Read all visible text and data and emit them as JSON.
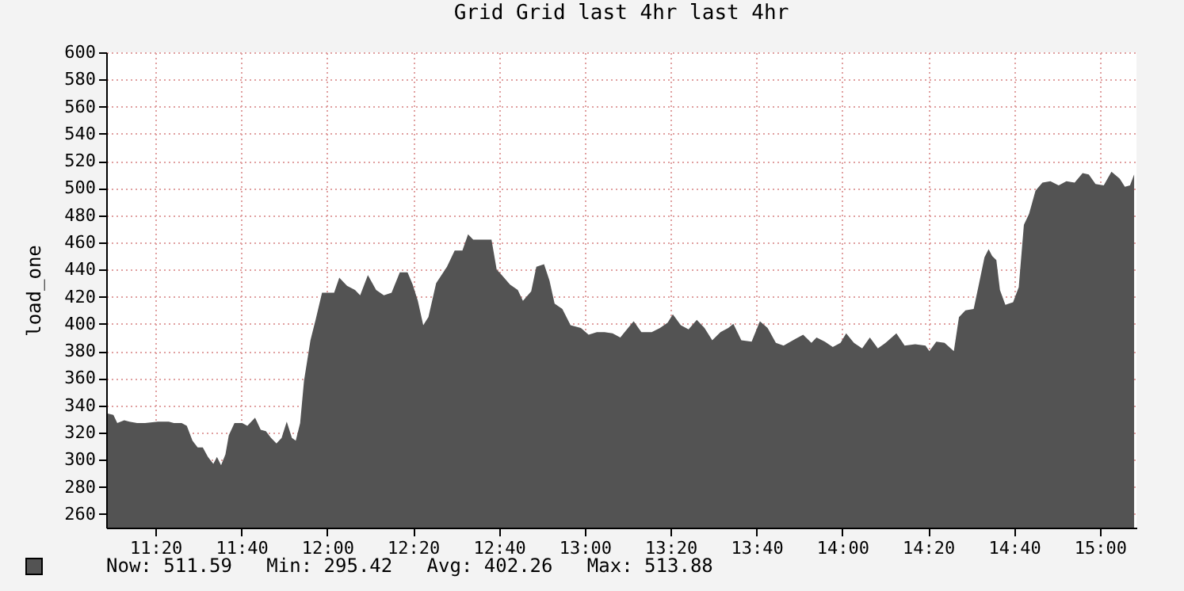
{
  "chart_data": {
    "type": "area",
    "title": "Grid Grid last 4hr last 4hr",
    "ylabel": "load_one",
    "annotations": [
      "Now: 511.59   Min: 295.42   Avg: 402.26   Max: 513.88"
    ],
    "xlim": [
      11.142,
      15.142
    ],
    "ylim": [
      250,
      600
    ],
    "xticks": [
      {
        "value": 11.333,
        "label": "11:20"
      },
      {
        "value": 11.667,
        "label": "11:40"
      },
      {
        "value": 12,
        "label": "12:00"
      },
      {
        "value": 12.333,
        "label": "12:20"
      },
      {
        "value": 12.667,
        "label": "12:40"
      },
      {
        "value": 13,
        "label": "13:00"
      },
      {
        "value": 13.333,
        "label": "13:20"
      },
      {
        "value": 13.667,
        "label": "13:40"
      },
      {
        "value": 14,
        "label": "14:00"
      },
      {
        "value": 14.333,
        "label": "14:20"
      },
      {
        "value": 14.667,
        "label": "14:40"
      },
      {
        "value": 15,
        "label": "15:00"
      }
    ],
    "yticks": [
      260,
      280,
      300,
      320,
      340,
      360,
      380,
      400,
      420,
      440,
      460,
      480,
      500,
      520,
      540,
      560,
      580,
      600
    ],
    "grid": true,
    "x": [
      11.148,
      11.17,
      11.185,
      11.212,
      11.232,
      11.262,
      11.293,
      11.343,
      11.385,
      11.405,
      11.435,
      11.455,
      11.477,
      11.497,
      11.517,
      11.537,
      11.558,
      11.572,
      11.588,
      11.605,
      11.618,
      11.64,
      11.67,
      11.69,
      11.72,
      11.742,
      11.762,
      11.782,
      11.803,
      11.823,
      11.843,
      11.863,
      11.878,
      11.895,
      11.91,
      11.935,
      11.955,
      11.98,
      12.007,
      12.027,
      12.047,
      12.077,
      12.108,
      12.128,
      12.158,
      12.19,
      12.22,
      12.25,
      12.282,
      12.312,
      12.332,
      12.352,
      12.373,
      12.393,
      12.423,
      12.465,
      12.495,
      12.525,
      12.547,
      12.567,
      12.587,
      12.618,
      12.638,
      12.658,
      12.678,
      12.71,
      12.74,
      12.76,
      12.792,
      12.812,
      12.842,
      12.863,
      12.883,
      12.913,
      12.945,
      12.985,
      13.015,
      13.047,
      13.077,
      13.108,
      13.138,
      13.168,
      13.19,
      13.22,
      13.26,
      13.292,
      13.322,
      13.342,
      13.373,
      13.403,
      13.435,
      13.465,
      13.495,
      13.527,
      13.557,
      13.577,
      13.608,
      13.648,
      13.68,
      13.71,
      13.742,
      13.772,
      13.818,
      13.848,
      13.88,
      13.9,
      13.932,
      13.963,
      13.993,
      14.015,
      14.045,
      14.077,
      14.107,
      14.138,
      14.168,
      14.21,
      14.242,
      14.283,
      14.323,
      14.338,
      14.365,
      14.397,
      14.433,
      14.453,
      14.478,
      14.51,
      14.53,
      14.552,
      14.568,
      14.582,
      14.598,
      14.612,
      14.633,
      14.663,
      14.685,
      14.705,
      14.725,
      14.75,
      14.777,
      14.808,
      14.84,
      14.87,
      14.902,
      14.933,
      14.957,
      14.983,
      15.015,
      15.045,
      15.077,
      15.097,
      15.117,
      15.133
    ],
    "series": [
      {
        "color": "#535353",
        "values": [
          334,
          333,
          327,
          329,
          328,
          327,
          327,
          328,
          328,
          327,
          327,
          325,
          314,
          309,
          309,
          302,
          297,
          302,
          296,
          304,
          318,
          327,
          327,
          325,
          331,
          322,
          321,
          316,
          312,
          316,
          328,
          316,
          314,
          327,
          358,
          388,
          403,
          423,
          423,
          423,
          434,
          428,
          425,
          421,
          436,
          425,
          421,
          423,
          438,
          438,
          429,
          417,
          399,
          405,
          430,
          442,
          454,
          454,
          466,
          462,
          462,
          462,
          462,
          440,
          436,
          429,
          425,
          417,
          424,
          442,
          444,
          432,
          415,
          411,
          399,
          397,
          392,
          394,
          394,
          393,
          390,
          397,
          402,
          394,
          394,
          397,
          401,
          407,
          399,
          396,
          403,
          397,
          388,
          394,
          397,
          400,
          388,
          387,
          402,
          397,
          386,
          384,
          389,
          392,
          386,
          390,
          387,
          383,
          386,
          393,
          386,
          382,
          390,
          382,
          386,
          393,
          384,
          385,
          384,
          380,
          387,
          386,
          380,
          405,
          410,
          411,
          429,
          449,
          455,
          450,
          447,
          425,
          414,
          416,
          427,
          473,
          481,
          498,
          504,
          505,
          502,
          505,
          504,
          511,
          510,
          503,
          502,
          512,
          507,
          501,
          502,
          510
        ]
      }
    ]
  }
}
